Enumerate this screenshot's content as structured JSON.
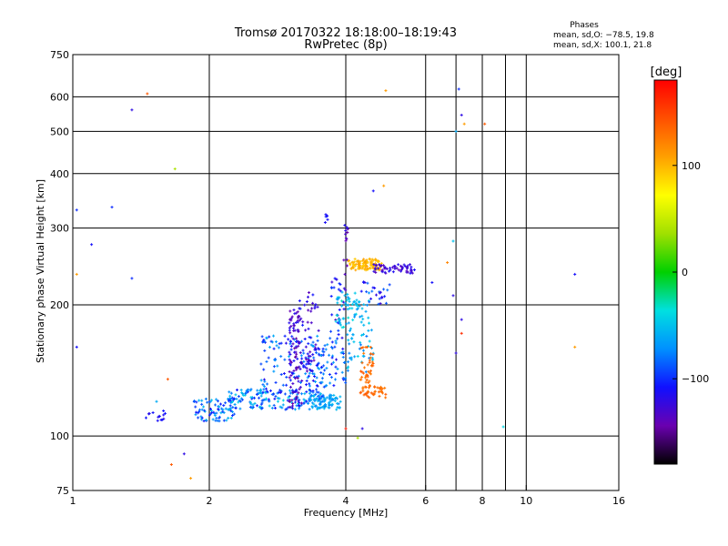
{
  "chart_data": {
    "type": "scatter",
    "title": "Tromsø 20170322 18:18:00–18:19:43",
    "subtitle": "RwPretec (8p)",
    "xlabel": "Frequency [MHz]",
    "ylabel": "Stationary phase Virtual Height [km]",
    "x_scale": "log2",
    "y_scale": "log",
    "xlim": [
      1,
      16
    ],
    "ylim": [
      75,
      750
    ],
    "x_ticks": [
      1,
      2,
      4,
      6,
      8,
      10,
      16
    ],
    "x_tick_labels": [
      "1",
      "2",
      "4",
      "6",
      "8",
      "10",
      "16"
    ],
    "x_gridlines": [
      2,
      4,
      6,
      7,
      8,
      9,
      10
    ],
    "y_ticks": [
      75,
      100,
      200,
      300,
      400,
      500,
      600,
      750
    ],
    "y_tick_labels": [
      "75",
      "100",
      "200",
      "300",
      "400",
      "500",
      "600",
      "750"
    ],
    "grid": true,
    "legend_block": {
      "title": "Phases",
      "line1": "mean, sd,O: −78.5, 19.8",
      "line2": "mean, sd,X: 100.1, 21.8"
    },
    "colorbar": {
      "label": "[deg]",
      "range": [
        -180,
        180
      ],
      "ticks": [
        100,
        0,
        -100
      ],
      "tick_labels": [
        "100",
        "0",
        "−100"
      ],
      "colors": [
        "#000000",
        "#6a00b0",
        "#1010ff",
        "#0090ff",
        "#00e0e0",
        "#00d000",
        "#a0e000",
        "#ffff00",
        "#ffa000",
        "#ff5000",
        "#ff0000"
      ]
    },
    "clusters": [
      {
        "x": [
          1.45,
          1.6
        ],
        "y": [
          108,
          115
        ],
        "n": 14,
        "phase": [
          -120,
          -100
        ]
      },
      {
        "x": [
          1.85,
          2.3
        ],
        "y": [
          108,
          122
        ],
        "n": 80,
        "phase": [
          -110,
          -50
        ]
      },
      {
        "x": [
          2.2,
          3.6
        ],
        "y": [
          115,
          128
        ],
        "n": 170,
        "phase": [
          -110,
          -40
        ]
      },
      {
        "x": [
          2.6,
          3.6
        ],
        "y": [
          125,
          170
        ],
        "n": 130,
        "phase": [
          -120,
          -60
        ]
      },
      {
        "x": [
          3.0,
          3.2
        ],
        "y": [
          115,
          195
        ],
        "n": 90,
        "phase": [
          -150,
          -110
        ]
      },
      {
        "x": [
          3.1,
          3.5
        ],
        "y": [
          140,
          215
        ],
        "n": 60,
        "phase": [
          -140,
          -100
        ]
      },
      {
        "x": [
          3.3,
          3.9
        ],
        "y": [
          115,
          125
        ],
        "n": 80,
        "phase": [
          -80,
          -50
        ]
      },
      {
        "x": [
          3.5,
          4.0
        ],
        "y": [
          130,
          175
        ],
        "n": 60,
        "phase": [
          -120,
          -60
        ]
      },
      {
        "x": [
          3.7,
          4.0
        ],
        "y": [
          180,
          230
        ],
        "n": 25,
        "phase": [
          -140,
          -90
        ]
      },
      {
        "x": [
          3.6,
          3.65
        ],
        "y": [
          305,
          325
        ],
        "n": 6,
        "phase": [
          -120,
          -100
        ]
      },
      {
        "x": [
          3.95,
          4.05
        ],
        "y": [
          230,
          305
        ],
        "n": 14,
        "phase": [
          -150,
          -110
        ]
      },
      {
        "x": [
          3.8,
          4.5
        ],
        "y": [
          175,
          215
        ],
        "n": 70,
        "phase": [
          -70,
          -30
        ]
      },
      {
        "x": [
          4.0,
          4.6
        ],
        "y": [
          140,
          175
        ],
        "n": 40,
        "phase": [
          -80,
          -40
        ]
      },
      {
        "x": [
          4.05,
          4.8
        ],
        "y": [
          240,
          255
        ],
        "n": 110,
        "phase": [
          90,
          110
        ]
      },
      {
        "x": [
          4.6,
          5.7
        ],
        "y": [
          236,
          248
        ],
        "n": 60,
        "phase": [
          -140,
          -110
        ]
      },
      {
        "x": [
          4.3,
          4.9
        ],
        "y": [
          122,
          130
        ],
        "n": 40,
        "phase": [
          125,
          140
        ]
      },
      {
        "x": [
          4.3,
          4.6
        ],
        "y": [
          130,
          160
        ],
        "n": 40,
        "phase": [
          125,
          140
        ]
      },
      {
        "x": [
          4.3,
          5.0
        ],
        "y": [
          200,
          228
        ],
        "n": 25,
        "phase": [
          -130,
          -80
        ]
      }
    ],
    "points": [
      {
        "x": 1.02,
        "y": 330,
        "phase": -100
      },
      {
        "x": 1.1,
        "y": 275,
        "phase": -110
      },
      {
        "x": 1.02,
        "y": 235,
        "phase": 110
      },
      {
        "x": 1.22,
        "y": 335,
        "phase": -100
      },
      {
        "x": 1.35,
        "y": 560,
        "phase": -120
      },
      {
        "x": 1.46,
        "y": 610,
        "phase": 140
      },
      {
        "x": 1.35,
        "y": 230,
        "phase": -100
      },
      {
        "x": 1.53,
        "y": 120,
        "phase": -60
      },
      {
        "x": 1.62,
        "y": 135,
        "phase": 140
      },
      {
        "x": 1.68,
        "y": 410,
        "phase": 40
      },
      {
        "x": 1.82,
        "y": 80,
        "phase": 110
      },
      {
        "x": 1.76,
        "y": 91,
        "phase": -120
      },
      {
        "x": 1.65,
        "y": 86,
        "phase": 140
      },
      {
        "x": 1.02,
        "y": 160,
        "phase": -110
      },
      {
        "x": 4.0,
        "y": 104,
        "phase": 170
      },
      {
        "x": 4.25,
        "y": 99,
        "phase": 40
      },
      {
        "x": 4.35,
        "y": 104,
        "phase": -120
      },
      {
        "x": 4.6,
        "y": 365,
        "phase": -110
      },
      {
        "x": 4.85,
        "y": 375,
        "phase": 110
      },
      {
        "x": 4.9,
        "y": 620,
        "phase": 110
      },
      {
        "x": 6.2,
        "y": 225,
        "phase": -110
      },
      {
        "x": 7.1,
        "y": 625,
        "phase": -100
      },
      {
        "x": 7.2,
        "y": 545,
        "phase": -120
      },
      {
        "x": 7.0,
        "y": 500,
        "phase": -60
      },
      {
        "x": 7.3,
        "y": 520,
        "phase": 110
      },
      {
        "x": 8.1,
        "y": 520,
        "phase": 140
      },
      {
        "x": 6.9,
        "y": 280,
        "phase": -50
      },
      {
        "x": 6.9,
        "y": 210,
        "phase": -120
      },
      {
        "x": 7.2,
        "y": 185,
        "phase": -120
      },
      {
        "x": 7.0,
        "y": 155,
        "phase": -120
      },
      {
        "x": 7.2,
        "y": 172,
        "phase": 160
      },
      {
        "x": 6.7,
        "y": 250,
        "phase": 120
      },
      {
        "x": 8.9,
        "y": 105,
        "phase": -40
      },
      {
        "x": 12.8,
        "y": 235,
        "phase": -110
      },
      {
        "x": 12.8,
        "y": 160,
        "phase": 110
      }
    ]
  }
}
